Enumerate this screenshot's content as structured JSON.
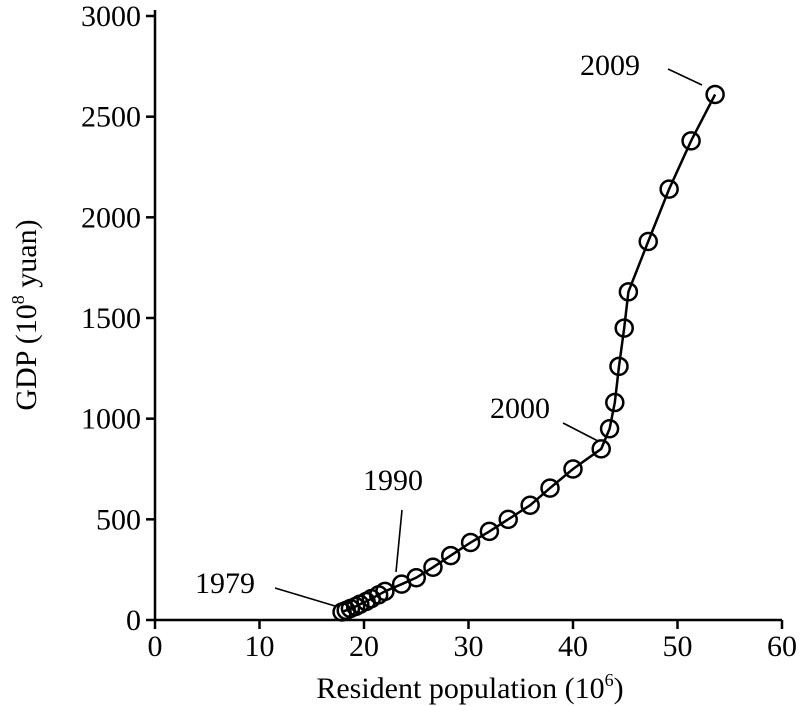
{
  "chart_data": {
    "type": "line",
    "xlabel": "Resident population (10",
    "xlabel_sup": "6",
    "xlabel_end": ")",
    "ylabel": "GDP (10",
    "ylabel_sup": "8",
    "ylabel_end": " yuan)",
    "xlim": [
      0,
      60
    ],
    "ylim": [
      0,
      3000
    ],
    "xticks": [
      0,
      10,
      20,
      30,
      40,
      50,
      60
    ],
    "yticks": [
      0,
      500,
      1000,
      1500,
      2000,
      2500,
      3000
    ],
    "marker": "open-circle",
    "series": [
      {
        "x": [
          17.9,
          18.3,
          18.7,
          19.2,
          19.6,
          20.2,
          20.7,
          21.4,
          22.0,
          23.6,
          25.0,
          26.6,
          28.3,
          30.2,
          32.0,
          33.8,
          35.9,
          37.8,
          40.0,
          42.7,
          43.5,
          44.0,
          44.4,
          44.9,
          45.3,
          47.2,
          49.2,
          51.3,
          53.6
        ],
        "y": [
          40,
          48,
          57,
          67,
          78,
          92,
          106,
          125,
          142,
          178,
          210,
          262,
          320,
          385,
          440,
          500,
          570,
          655,
          750,
          850,
          950,
          1080,
          1260,
          1450,
          1630,
          1880,
          2140,
          2380,
          2610
        ]
      }
    ],
    "annotations": [
      {
        "text": "1979",
        "x": 17.9,
        "y": 40
      },
      {
        "text": "1990",
        "x": 23.6,
        "y": 178
      },
      {
        "text": "2000",
        "x": 42.7,
        "y": 850
      },
      {
        "text": "2009",
        "x": 53.6,
        "y": 2610
      }
    ]
  }
}
